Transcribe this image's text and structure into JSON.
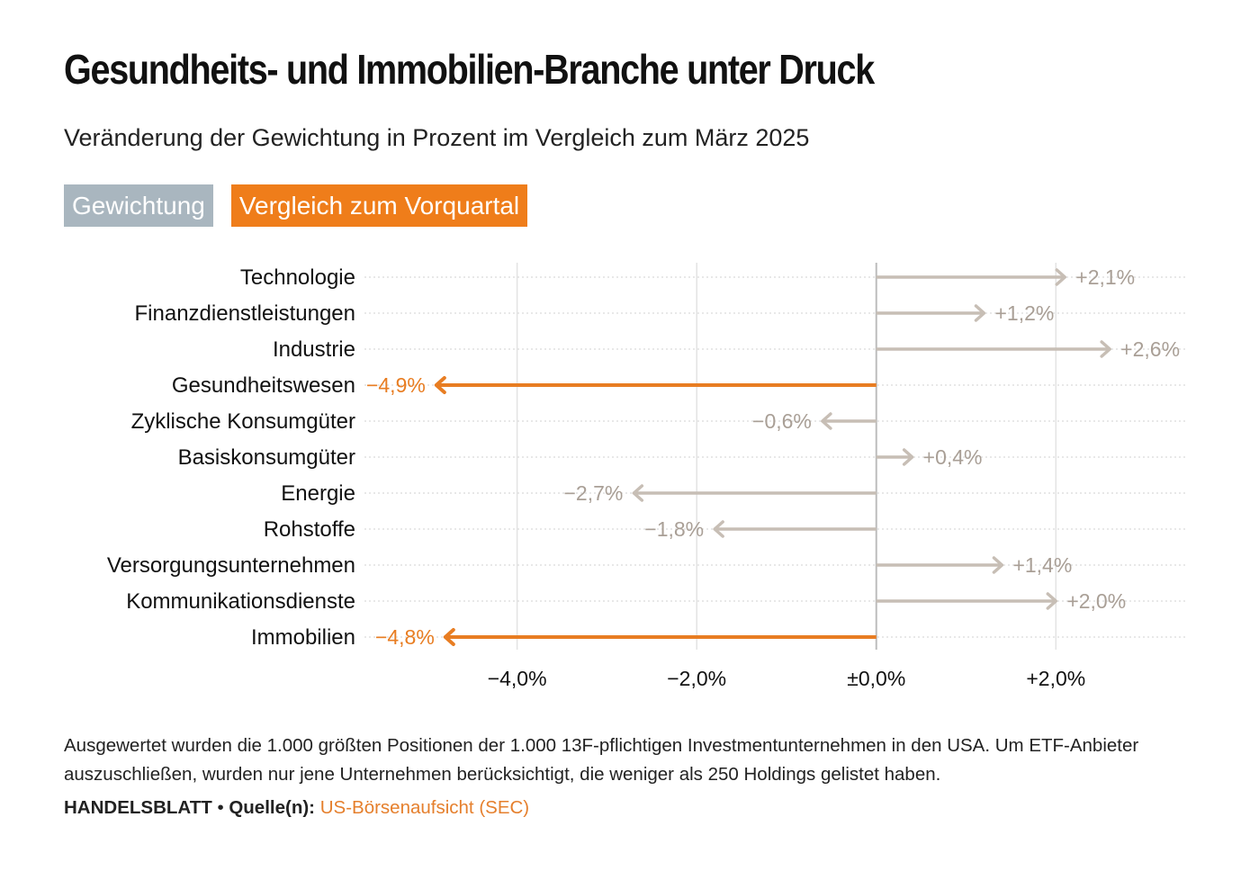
{
  "header": {
    "title": "Gesundheits- und Immobilien-Branche unter Druck",
    "subtitle": "Veränderung der Gewichtung in Prozent im Vergleich zum März 2025"
  },
  "tabs": [
    {
      "label": "Gewichtung",
      "color": "#a9b6bf",
      "active": false
    },
    {
      "label": "Vergleich zum Vorquartal",
      "color": "#ef7d1a",
      "active": true
    }
  ],
  "chart_data": {
    "type": "bar",
    "orientation": "horizontal",
    "style": "arrow",
    "categories": [
      "Technologie",
      "Finanzdienstleistungen",
      "Industrie",
      "Gesundheitswesen",
      "Zyklische Konsumgüter",
      "Basiskonsumgüter",
      "Energie",
      "Rohstoffe",
      "Versorgungsunternehmen",
      "Kommunikationsdienste",
      "Immobilien"
    ],
    "values": [
      2.1,
      1.2,
      2.6,
      -4.9,
      -0.6,
      0.4,
      -2.7,
      -1.8,
      1.4,
      2.0,
      -4.8
    ],
    "value_labels": [
      "+2,1%",
      "+1,2%",
      "+2,6%",
      "−4,9%",
      "−0,6%",
      "+0,4%",
      "−2,7%",
      "−1,8%",
      "+1,4%",
      "+2,0%",
      "−4,8%"
    ],
    "highlight": [
      "Gesundheitswesen",
      "Immobilien"
    ],
    "highlight_color": "#e87d22",
    "base_color": "#c7beb5",
    "xlim": [
      -5.7,
      3.45
    ],
    "xticks": [
      -4,
      -2,
      0,
      2
    ],
    "xtick_labels": [
      "−4,0%",
      "−2,0%",
      "±0,0%",
      "+2,0%"
    ],
    "grid": true
  },
  "footer": {
    "note": "Ausgewertet wurden die 1.000 größten Positionen der 1.000 13F-pflichtigen Investmentunternehmen in den USA. Um ETF-Anbieter auszuschließen, wurden nur jene Unternehmen berücksichtigt, die weniger als 250 Holdings gelistet haben.",
    "brand": "HANDELSBLATT",
    "separator": "•",
    "source_label": "Quelle(n):",
    "source_value": "US-Börsenaufsicht (SEC)"
  }
}
